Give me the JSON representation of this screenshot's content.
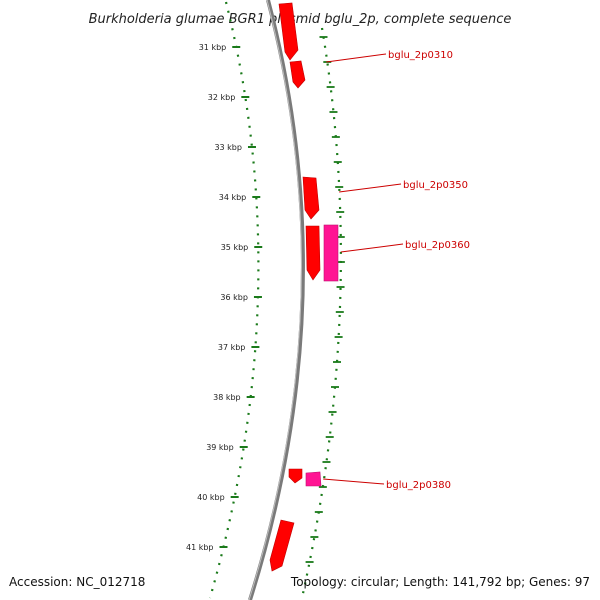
{
  "title": "Burkholderia glumae BGR1 plasmid bglu_2p, complete sequence",
  "accession": "Accession: NC_012718",
  "summary": "Topology: circular; Length: 141,792 bp; Genes: 97",
  "colors": {
    "backbone": "#7a7a7a",
    "ticks": "#1a7a1a",
    "gene_forward": "#ff0000",
    "gene_reverse": "#ff1493",
    "label": "#cc0000",
    "leader": "#cc0000"
  },
  "kbp_ticks": [
    {
      "label": "31 kbp",
      "kbp": 31
    },
    {
      "label": "32 kbp",
      "kbp": 32
    },
    {
      "label": "33 kbp",
      "kbp": 33
    },
    {
      "label": "34 kbp",
      "kbp": 34
    },
    {
      "label": "35 kbp",
      "kbp": 35
    },
    {
      "label": "36 kbp",
      "kbp": 36
    },
    {
      "label": "37 kbp",
      "kbp": 37
    },
    {
      "label": "38 kbp",
      "kbp": 38
    },
    {
      "label": "39 kbp",
      "kbp": 39
    },
    {
      "label": "40 kbp",
      "kbp": 40
    },
    {
      "label": "41 kbp",
      "kbp": 41
    }
  ],
  "gene_labels": [
    {
      "name": "bglu_2p0310",
      "kbp": 31.3
    },
    {
      "name": "bglu_2p0350",
      "kbp": 33.9
    },
    {
      "name": "bglu_2p0360",
      "kbp": 35.1
    },
    {
      "name": "bglu_2p0380",
      "kbp": 39.9
    }
  ]
}
